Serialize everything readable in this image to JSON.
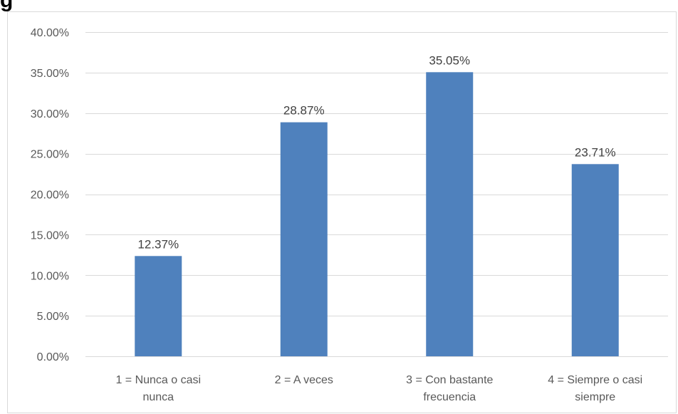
{
  "heading_fragment": "g",
  "colors": {
    "bar": "#4f81bd",
    "grid": "#d9d9d9",
    "tick_text": "#595959",
    "label_text": "#404040"
  },
  "chart_data": {
    "type": "bar",
    "title": "",
    "xlabel": "",
    "ylabel": "",
    "categories": [
      [
        "1 = Nunca o casi",
        "nunca"
      ],
      [
        "2 = A veces"
      ],
      [
        "3 = Con bastante",
        "frecuencia"
      ],
      [
        "4 = Siempre o casi",
        "siempre"
      ]
    ],
    "values": [
      12.37,
      28.87,
      35.05,
      23.71
    ],
    "data_labels": [
      "12.37%",
      "28.87%",
      "35.05%",
      "23.71%"
    ],
    "ylim": [
      0,
      40
    ],
    "yticks": [
      0,
      5,
      10,
      15,
      20,
      25,
      30,
      35,
      40
    ],
    "ytick_labels": [
      "0.00%",
      "5.00%",
      "10.00%",
      "15.00%",
      "20.00%",
      "25.00%",
      "30.00%",
      "35.00%",
      "40.00%"
    ],
    "grid": true,
    "legend": "none"
  }
}
